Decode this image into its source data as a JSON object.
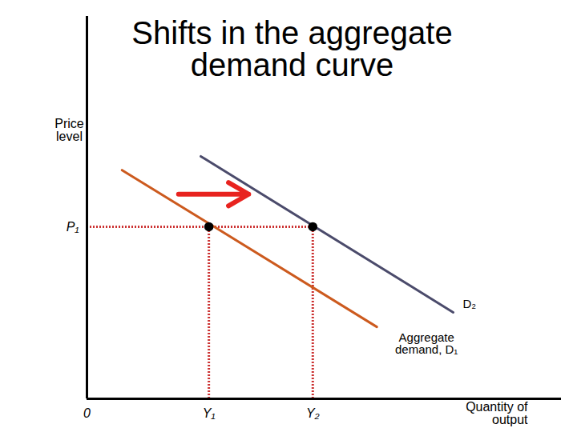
{
  "chart_data": {
    "type": "line",
    "title": "Shifts in the aggregate demand curve",
    "xlabel": "Quantity of output",
    "ylabel": "Price level",
    "xlim": [
      0,
      100
    ],
    "ylim": [
      0,
      100
    ],
    "xticks": [
      0,
      {
        "value": 25.7,
        "label": "Y₁"
      },
      {
        "value": 47.6,
        "label": "Y₂"
      }
    ],
    "yticks": [
      {
        "value": 45,
        "label": "P₁"
      }
    ],
    "series": [
      {
        "name": "Aggregate demand, D₁",
        "color": "#cc5a1e",
        "x": [
          7.4,
          61.1
        ],
        "values": [
          59.8,
          18.8
        ]
      },
      {
        "name": "D₂",
        "color": "#4b4b6b",
        "x": [
          24,
          77.2
        ],
        "values": [
          63.4,
          22.6
        ]
      }
    ],
    "points": [
      {
        "x": 25.7,
        "y": 45
      },
      {
        "x": 47.6,
        "y": 45
      }
    ],
    "arrow": {
      "x1": 19.3,
      "x2": 34.1,
      "y": 53.5
    }
  }
}
